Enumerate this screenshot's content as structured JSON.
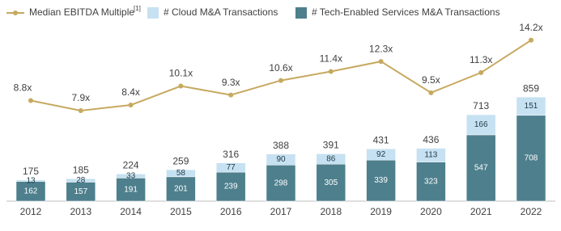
{
  "chart_data": {
    "type": "bar-line",
    "categories": [
      "2012",
      "2013",
      "2014",
      "2015",
      "2016",
      "2017",
      "2018",
      "2019",
      "2020",
      "2021",
      "2022"
    ],
    "series": [
      {
        "name": "# Tech-Enabled Services M&A Transactions",
        "type": "bar",
        "color": "#4e7f8d",
        "values": [
          162,
          157,
          191,
          201,
          239,
          298,
          305,
          339,
          323,
          547,
          708
        ]
      },
      {
        "name": "# Cloud M&A Transactions",
        "type": "bar",
        "color": "#c6e1f1",
        "values": [
          13,
          28,
          33,
          58,
          77,
          90,
          86,
          92,
          113,
          166,
          151
        ]
      },
      {
        "name": "Median EBITDA Multiple",
        "note": "[1]",
        "type": "line",
        "axis": "y2",
        "color": "#c6a95f",
        "values": [
          8.8,
          7.9,
          8.4,
          10.1,
          9.3,
          10.6,
          11.4,
          12.3,
          9.5,
          11.3,
          14.2
        ],
        "value_labels": [
          "8.8x",
          "7.9x",
          "8.4x",
          "10.1x",
          "9.3x",
          "10.6x",
          "11.4x",
          "12.3x",
          "9.5x",
          "11.3x",
          "14.2x"
        ]
      }
    ],
    "totals": [
      175,
      185,
      224,
      259,
      316,
      388,
      391,
      431,
      436,
      713,
      859
    ],
    "ylim": [
      0,
      1660
    ],
    "y2lim": [
      -0.2,
      17.8
    ]
  }
}
